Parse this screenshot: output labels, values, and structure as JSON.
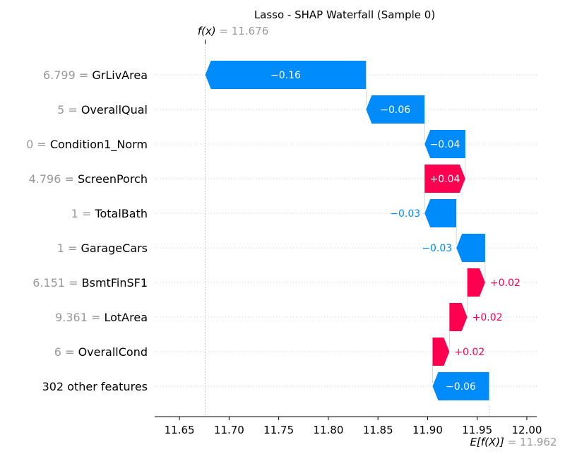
{
  "chart_data": {
    "type": "waterfall",
    "title": "Lasso - SHAP Waterfall (Sample 0)",
    "fx": {
      "label": "f(x)",
      "value": "11.676",
      "numeric": 11.676
    },
    "efx": {
      "label": "E[f(X)]",
      "value": "11.962",
      "numeric": 11.962
    },
    "xlim": [
      11.625,
      12.01
    ],
    "ticks": [
      11.65,
      11.7,
      11.75,
      11.8,
      11.85,
      11.9,
      11.95,
      12.0
    ],
    "tick_labels": [
      "11.65",
      "11.70",
      "11.75",
      "11.80",
      "11.85",
      "11.90",
      "11.95",
      "12.00"
    ],
    "colors": {
      "negative": "#008bfb",
      "positive": "#ff0051",
      "feature_value": "#999999"
    },
    "features": [
      {
        "value": "6.799",
        "name": "GrLivArea",
        "label": "−0.16",
        "start": 11.838,
        "end": 11.676
      },
      {
        "value": "5",
        "name": "OverallQual",
        "label": "−0.06",
        "start": 11.897,
        "end": 11.838
      },
      {
        "value": "0",
        "name": "Condition1_Norm",
        "label": "−0.04",
        "start": 11.938,
        "end": 11.897
      },
      {
        "value": "4.796",
        "name": "ScreenPorch",
        "label": "+0.04",
        "start": 11.897,
        "end": 11.938
      },
      {
        "value": "1",
        "name": "TotalBath",
        "label": "−0.03",
        "start": 11.929,
        "end": 11.897
      },
      {
        "value": "1",
        "name": "GarageCars",
        "label": "−0.03",
        "start": 11.958,
        "end": 11.929
      },
      {
        "value": "6.151",
        "name": "BsmtFinSF1",
        "label": "+0.02",
        "start": 11.94,
        "end": 11.958
      },
      {
        "value": "9.361",
        "name": "LotArea",
        "label": "+0.02",
        "start": 11.922,
        "end": 11.94
      },
      {
        "value": "6",
        "name": "OverallCond",
        "label": "+0.02",
        "start": 11.905,
        "end": 11.922
      },
      {
        "value": "",
        "name": "302 other features",
        "label": "−0.06",
        "start": 11.962,
        "end": 11.905
      }
    ]
  }
}
